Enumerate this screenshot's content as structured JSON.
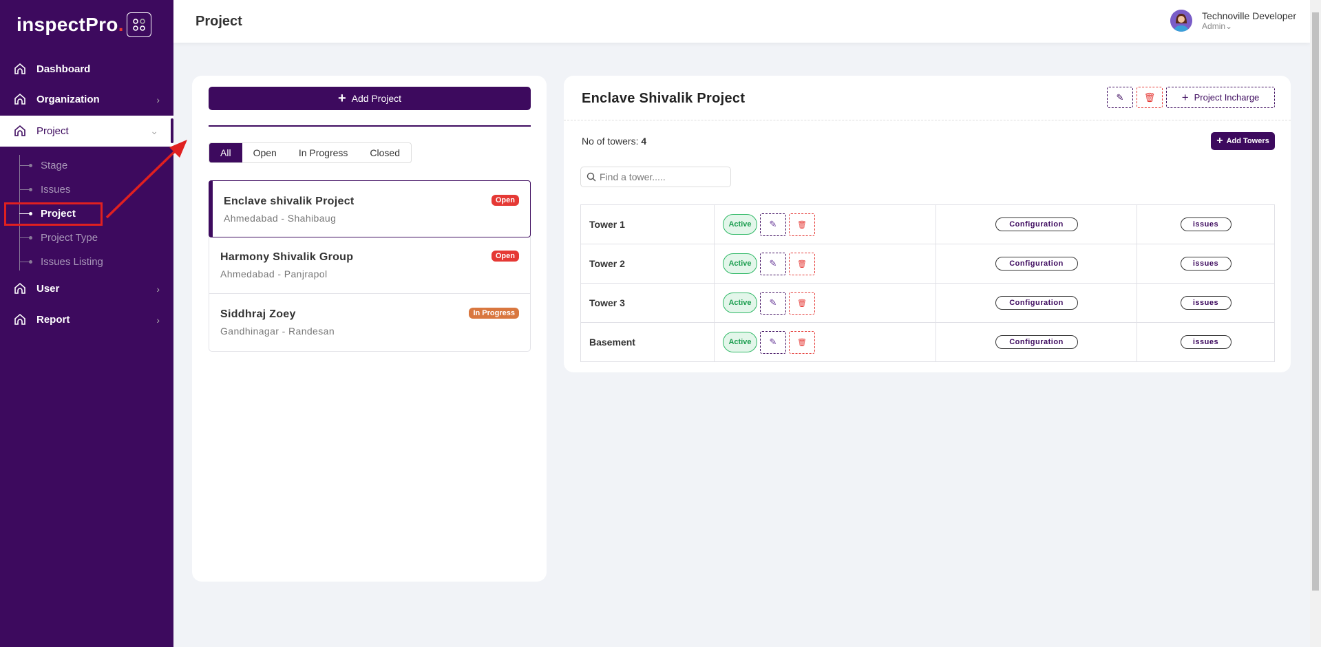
{
  "brand": {
    "name": "inspectPro",
    "dot": "."
  },
  "sidebar": {
    "items": [
      {
        "label": "Dashboard",
        "icon": "home-icon"
      },
      {
        "label": "Organization",
        "icon": "home-icon"
      },
      {
        "label": "Project",
        "icon": "home-icon"
      },
      {
        "label": "User",
        "icon": "home-icon"
      },
      {
        "label": "Report",
        "icon": "home-icon"
      }
    ],
    "submenu": [
      "Stage",
      "Issues",
      "Project",
      "Project Type",
      "Issues Listing"
    ]
  },
  "header": {
    "title": "Project",
    "user_name": "Technoville Developer",
    "user_role": "Admin"
  },
  "projects_panel": {
    "add_label": "Add Project",
    "tabs": [
      "All",
      "Open",
      "In Progress",
      "Closed"
    ],
    "items": [
      {
        "name": "Enclave shivalik Project",
        "location": "Ahmedabad - Shahibaug",
        "status": "Open"
      },
      {
        "name": "Harmony Shivalik Group",
        "location": "Ahmedabad - Panjrapol",
        "status": "Open"
      },
      {
        "name": "Siddhraj Zoey",
        "location": "Gandhinagar - Randesan",
        "status": "In Progress"
      }
    ]
  },
  "detail": {
    "title": "Enclave Shivalik Project",
    "incharge_label": "Project Incharge",
    "towers_label": "No of towers:",
    "towers_count": "4",
    "add_towers_label": "Add Towers",
    "search_placeholder": "Find a tower.....",
    "rows": [
      {
        "name": "Tower 1",
        "status": "Active",
        "config": "Configuration",
        "issues": "issues"
      },
      {
        "name": "Tower 2",
        "status": "Active",
        "config": "Configuration",
        "issues": "issues"
      },
      {
        "name": "Tower 3",
        "status": "Active",
        "config": "Configuration",
        "issues": "issues"
      },
      {
        "name": "Basement",
        "status": "Active",
        "config": "Configuration",
        "issues": "issues"
      }
    ]
  },
  "colors": {
    "primary": "#3d0a5e",
    "open": "#e53935",
    "in_progress": "#d9773f",
    "active": "#1d9e50"
  }
}
